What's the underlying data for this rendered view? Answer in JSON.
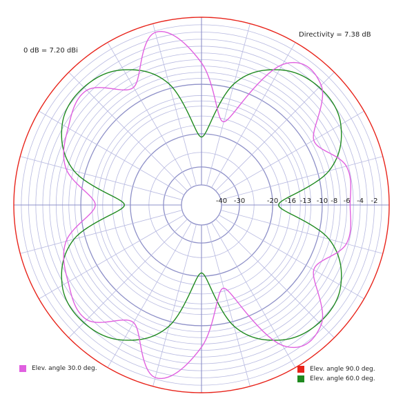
{
  "header": {
    "directivity": "Directivity = 7.38 dB",
    "zero_db": "0 dB = 7.20 dBi"
  },
  "colors": {
    "grid": "#b6b8e0",
    "grid_major": "#8e90c8",
    "outer": "#e0302a",
    "series_90": "#e8231a",
    "series_60": "#1f8a1f",
    "series_30": "#e060e0"
  },
  "chart_data": {
    "type": "polar",
    "radial_unit": "dB",
    "radial_range": [
      -50,
      0
    ],
    "radial_tick_labels": [
      "-40",
      "-30",
      "-20",
      "-16",
      "-13",
      "-10",
      "-8",
      "-6",
      "-4",
      "-2"
    ],
    "radial_tick_values": [
      -40,
      -30,
      -20,
      -16,
      -13,
      -10,
      -8,
      -6,
      -4,
      -2
    ],
    "angular_grid_step_deg": 15,
    "series": [
      {
        "name": "Elev. angle 90.0 deg.",
        "color": "#e8231a",
        "angles_deg": [
          0,
          90,
          180,
          270,
          360
        ],
        "values_db": [
          0,
          0,
          0,
          0,
          0
        ]
      },
      {
        "name": "Elev. angle 60.0 deg.",
        "color": "#1f8a1f",
        "angles_deg": [
          0,
          15,
          30,
          45,
          60,
          75,
          90,
          105,
          120,
          135,
          150,
          165,
          180,
          195,
          210,
          225,
          240,
          255,
          270,
          285,
          300,
          315,
          330,
          345,
          360
        ],
        "values_db": [
          -18.6,
          -8.1,
          -3.7,
          -2.9,
          -4.4,
          -9.2,
          -20.8,
          -9.2,
          -4.4,
          -2.9,
          -3.7,
          -8.1,
          -18.6,
          -8.1,
          -3.7,
          -2.9,
          -4.4,
          -9.2,
          -20.8,
          -9.2,
          -4.4,
          -2.9,
          -3.7,
          -8.1,
          -18.6
        ]
      },
      {
        "name": "Elev. angle 30.0 deg.",
        "color": "#e060e0",
        "angles_deg": [
          0,
          15,
          30,
          45,
          60,
          75,
          90,
          105,
          120,
          135,
          150,
          165,
          180,
          195,
          210,
          225,
          240,
          255,
          270,
          285,
          300,
          315,
          330,
          345,
          360
        ],
        "values_db": [
          -5.5,
          -5.3,
          -8.5,
          -2.5,
          -3.5,
          -16.6,
          -6.5,
          -1.2,
          -7.5,
          -3.5,
          -4.7,
          -6.8,
          -12.6,
          -6.8,
          -4.7,
          -3.5,
          -7.5,
          -1.2,
          -6.5,
          -16.6,
          -3.5,
          -2.5,
          -8.5,
          -5.3,
          -5.5
        ]
      }
    ]
  },
  "legend": {
    "item_30": "Elev. angle 30.0 deg.",
    "item_90": "Elev. angle 90.0 deg.",
    "item_60": "Elev. angle 60.0 deg."
  }
}
